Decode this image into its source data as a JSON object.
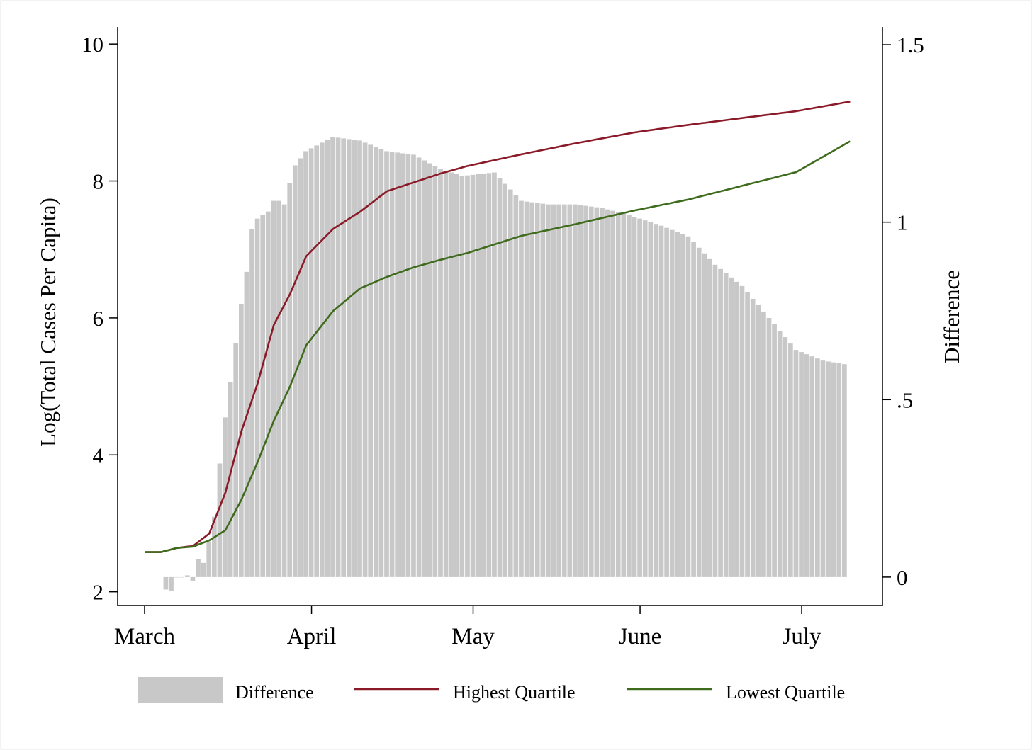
{
  "chart_data": {
    "type": "bar+line",
    "y_left_label": "Log(Total Cases Per Capita)",
    "y_right_label": "Difference",
    "y_left_ticks": [
      2,
      4,
      6,
      8,
      10
    ],
    "y_left_tick_labels": [
      "2",
      "4",
      "6",
      "8",
      "10"
    ],
    "y_left_lim": [
      1.8,
      10.25
    ],
    "y_right_ticks": [
      0,
      0.5,
      1,
      1.5
    ],
    "y_right_tick_labels": [
      "0",
      ".5",
      "1",
      "1.5"
    ],
    "y_right_lim": [
      -0.08,
      1.55
    ],
    "x_ticks": [
      "2020-03-01",
      "2020-04-01",
      "2020-05-01",
      "2020-06-01",
      "2020-07-01"
    ],
    "x_tick_labels": [
      "March",
      "April",
      "May",
      "June",
      "July"
    ],
    "x_lim": [
      "2020-02-25",
      "2020-07-16"
    ],
    "grid": false,
    "legend_position": "bottom",
    "legend": [
      {
        "label": "Difference",
        "kind": "bar",
        "color": "#c8c8c8"
      },
      {
        "label": "Highest Quartile",
        "kind": "line",
        "color": "#8b1a28"
      },
      {
        "label": "Lowest Quartile",
        "kind": "line",
        "color": "#3f6b1c"
      }
    ],
    "bar_series": {
      "name": "Difference",
      "axis": "right",
      "color": "#c8c8c8",
      "dates": [
        "2020-03-05",
        "2020-03-06",
        "2020-03-07",
        "2020-03-08",
        "2020-03-09",
        "2020-03-10",
        "2020-03-11",
        "2020-03-12",
        "2020-03-13",
        "2020-03-14",
        "2020-03-15",
        "2020-03-16",
        "2020-03-17",
        "2020-03-18",
        "2020-03-19",
        "2020-03-20",
        "2020-03-21",
        "2020-03-22",
        "2020-03-23",
        "2020-03-24",
        "2020-03-25",
        "2020-03-26",
        "2020-03-27",
        "2020-03-28",
        "2020-03-29",
        "2020-03-30",
        "2020-03-31",
        "2020-04-05",
        "2020-04-10",
        "2020-04-15",
        "2020-04-20",
        "2020-04-25",
        "2020-04-29",
        "2020-05-05",
        "2020-05-10",
        "2020-05-15",
        "2020-05-20",
        "2020-05-25",
        "2020-05-30",
        "2020-06-05",
        "2020-06-10",
        "2020-06-15",
        "2020-06-20",
        "2020-06-25",
        "2020-06-30",
        "2020-07-05",
        "2020-07-09"
      ],
      "values": [
        -0.035,
        -0.038,
        0.0,
        0.0,
        0.005,
        -0.01,
        0.05,
        0.04,
        0.1,
        0.17,
        0.32,
        0.45,
        0.55,
        0.66,
        0.77,
        0.86,
        0.98,
        1.01,
        1.02,
        1.03,
        1.06,
        1.06,
        1.05,
        1.11,
        1.16,
        1.18,
        1.2,
        1.24,
        1.23,
        1.2,
        1.19,
        1.15,
        1.13,
        1.14,
        1.06,
        1.05,
        1.05,
        1.04,
        1.02,
        0.99,
        0.96,
        0.88,
        0.82,
        0.73,
        0.64,
        0.61,
        0.6
      ]
    },
    "series": [
      {
        "name": "Highest Quartile",
        "axis": "left",
        "color": "#8b1a28",
        "dates": [
          "2020-03-01",
          "2020-03-04",
          "2020-03-07",
          "2020-03-10",
          "2020-03-13",
          "2020-03-16",
          "2020-03-19",
          "2020-03-22",
          "2020-03-25",
          "2020-03-28",
          "2020-03-31",
          "2020-04-05",
          "2020-04-10",
          "2020-04-15",
          "2020-04-20",
          "2020-04-25",
          "2020-04-30",
          "2020-05-10",
          "2020-05-20",
          "2020-05-31",
          "2020-06-10",
          "2020-06-20",
          "2020-06-30",
          "2020-07-10"
        ],
        "values": [
          2.58,
          2.58,
          2.64,
          2.67,
          2.85,
          3.45,
          4.35,
          5.05,
          5.9,
          6.35,
          6.9,
          7.3,
          7.55,
          7.85,
          7.98,
          8.11,
          8.22,
          8.39,
          8.55,
          8.71,
          8.82,
          8.92,
          9.02,
          9.16
        ]
      },
      {
        "name": "Lowest Quartile",
        "axis": "left",
        "color": "#3f6b1c",
        "dates": [
          "2020-03-01",
          "2020-03-04",
          "2020-03-07",
          "2020-03-10",
          "2020-03-13",
          "2020-03-16",
          "2020-03-19",
          "2020-03-22",
          "2020-03-25",
          "2020-03-28",
          "2020-03-31",
          "2020-04-05",
          "2020-04-10",
          "2020-04-15",
          "2020-04-20",
          "2020-04-25",
          "2020-04-30",
          "2020-05-10",
          "2020-05-20",
          "2020-05-31",
          "2020-06-10",
          "2020-06-20",
          "2020-06-30",
          "2020-07-10"
        ],
        "values": [
          2.58,
          2.58,
          2.64,
          2.66,
          2.75,
          2.9,
          3.35,
          3.9,
          4.5,
          5.0,
          5.6,
          6.1,
          6.43,
          6.6,
          6.74,
          6.85,
          6.95,
          7.2,
          7.37,
          7.57,
          7.73,
          7.93,
          8.13,
          8.58
        ]
      }
    ]
  }
}
